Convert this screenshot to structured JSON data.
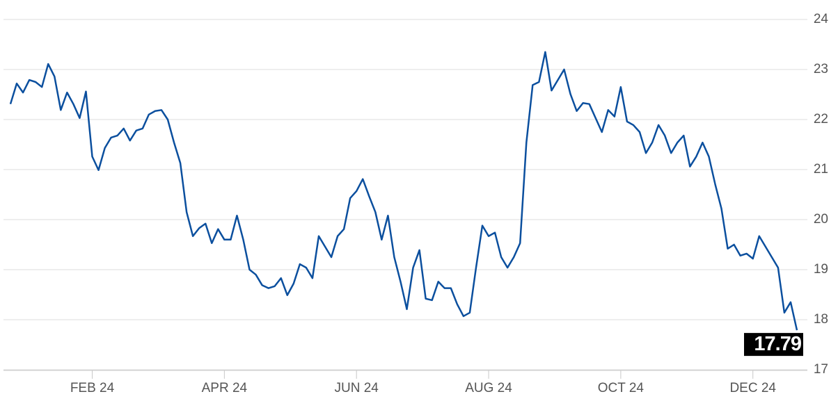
{
  "chart_data": {
    "type": "line",
    "color": "#0b4f9e",
    "ylim": [
      17,
      24
    ],
    "yticks": [
      17,
      18,
      19,
      20,
      21,
      22,
      23,
      24
    ],
    "grid": true,
    "categories": [
      null,
      null,
      null,
      null,
      null,
      null,
      null,
      null,
      null,
      null,
      null,
      null,
      null,
      "FEB 24",
      null,
      null,
      null,
      null,
      null,
      null,
      null,
      null,
      null,
      null,
      null,
      null,
      null,
      null,
      null,
      null,
      null,
      null,
      null,
      null,
      "APR 24",
      null,
      null,
      null,
      null,
      null,
      null,
      null,
      null,
      null,
      null,
      null,
      null,
      null,
      null,
      null,
      null,
      null,
      null,
      null,
      null,
      "JUN 24",
      null,
      null,
      null,
      null,
      null,
      null,
      null,
      null,
      null,
      null,
      null,
      null,
      null,
      null,
      null,
      null,
      null,
      null,
      null,
      null,
      "AUG 24",
      null,
      null,
      null,
      null,
      null,
      null,
      null,
      null,
      null,
      null,
      null,
      null,
      null,
      null,
      null,
      null,
      null,
      null,
      null,
      null,
      "OCT 24",
      null,
      null,
      null,
      null,
      null,
      null,
      null,
      null,
      null,
      null,
      null,
      null,
      null,
      null,
      null,
      null,
      null,
      null,
      null,
      null,
      "DEC 24",
      null,
      null,
      null,
      null,
      null,
      null,
      null
    ],
    "values": [
      22.31,
      22.72,
      22.54,
      22.79,
      22.75,
      22.65,
      23.11,
      22.86,
      22.19,
      22.54,
      22.31,
      22.03,
      22.56,
      21.26,
      20.99,
      21.43,
      21.64,
      21.68,
      21.82,
      21.58,
      21.78,
      21.82,
      22.1,
      22.17,
      22.19,
      22.0,
      21.54,
      21.13,
      20.15,
      19.67,
      19.83,
      19.92,
      19.53,
      19.81,
      19.6,
      19.6,
      20.08,
      19.6,
      19.0,
      18.9,
      18.69,
      18.63,
      18.67,
      18.83,
      18.49,
      18.72,
      19.11,
      19.04,
      18.83,
      19.67,
      19.46,
      19.25,
      19.67,
      19.81,
      20.43,
      20.57,
      20.81,
      20.47,
      20.15,
      19.6,
      20.08,
      19.25,
      18.76,
      18.21,
      19.04,
      19.39,
      18.42,
      18.39,
      18.76,
      18.63,
      18.63,
      18.31,
      18.07,
      18.14,
      19.04,
      19.88,
      19.67,
      19.74,
      19.25,
      19.04,
      19.25,
      19.53,
      21.54,
      22.69,
      22.75,
      23.35,
      22.58,
      22.79,
      23.0,
      22.51,
      22.17,
      22.33,
      22.31,
      22.03,
      21.75,
      22.19,
      22.06,
      22.65,
      21.96,
      21.89,
      21.75,
      21.33,
      21.54,
      21.89,
      21.68,
      21.33,
      21.54,
      21.68,
      21.06,
      21.26,
      21.54,
      21.26,
      20.71,
      20.22,
      19.42,
      19.5,
      19.28,
      19.32,
      19.22,
      19.67,
      19.46,
      19.25,
      19.04,
      18.14,
      18.35,
      17.79
    ]
  }
}
